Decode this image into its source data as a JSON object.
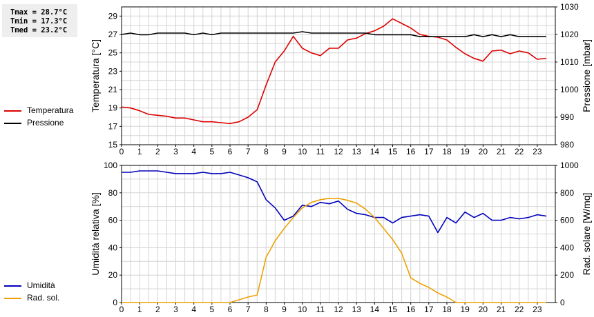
{
  "stats": {
    "tmax": "Tmax = 28.7°C",
    "tmin": "Tmin = 17.3°C",
    "tmed": "Tmed = 23.2°C"
  },
  "legend_top": [
    {
      "label": "Temperatura",
      "color": "#dd0000"
    },
    {
      "label": "Pressione",
      "color": "#000000"
    }
  ],
  "legend_bottom": [
    {
      "label": "Umidità",
      "color": "#0000bb"
    },
    {
      "label": "Rad. sol.",
      "color": "#eea000"
    }
  ],
  "chart_data": [
    {
      "type": "line",
      "xlabel": "",
      "ylabel": "Temperatura [°C]",
      "ylabel_right": "Pressione [mbar]",
      "xlim": [
        0,
        24
      ],
      "ylim": [
        15,
        30
      ],
      "ylim_right": [
        980,
        1030
      ],
      "x_ticks": [
        0,
        1,
        2,
        3,
        4,
        5,
        6,
        7,
        8,
        9,
        10,
        11,
        12,
        13,
        14,
        15,
        16,
        17,
        18,
        19,
        20,
        21,
        22,
        23
      ],
      "y_ticks": [
        15,
        17,
        19,
        21,
        23,
        25,
        27,
        29
      ],
      "y_ticks_right": [
        980,
        990,
        1000,
        1010,
        1020,
        1030
      ],
      "grid": true,
      "series": [
        {
          "name": "Temperatura",
          "axis": "left",
          "color": "#dd0000",
          "x": [
            0,
            0.5,
            1,
            1.5,
            2,
            2.5,
            3,
            3.5,
            4,
            4.5,
            5,
            5.5,
            6,
            6.5,
            7,
            7.5,
            8,
            8.5,
            9,
            9.5,
            10,
            10.5,
            11,
            11.5,
            12,
            12.5,
            13,
            13.5,
            14,
            14.5,
            15,
            15.5,
            16,
            16.5,
            17,
            17.5,
            18,
            18.5,
            19,
            19.5,
            20,
            20.5,
            21,
            21.5,
            22,
            22.5,
            23,
            23.5
          ],
          "y": [
            19.1,
            19.0,
            18.7,
            18.3,
            18.2,
            18.1,
            17.9,
            17.9,
            17.7,
            17.5,
            17.5,
            17.4,
            17.3,
            17.5,
            18.0,
            18.8,
            21.5,
            24.0,
            25.2,
            26.8,
            25.5,
            25.0,
            24.7,
            25.5,
            25.5,
            26.4,
            26.6,
            27.1,
            27.4,
            27.9,
            28.7,
            28.2,
            27.7,
            27.0,
            26.8,
            26.7,
            26.4,
            25.6,
            24.9,
            24.4,
            24.1,
            25.2,
            25.3,
            24.9,
            25.2,
            25.0,
            24.3,
            24.4
          ]
        },
        {
          "name": "Pressione",
          "axis": "right",
          "color": "#000000",
          "x": [
            0,
            0.5,
            1,
            1.5,
            2,
            2.5,
            3,
            3.5,
            4,
            4.5,
            5,
            5.5,
            6,
            6.5,
            7,
            7.5,
            8,
            8.5,
            9,
            9.5,
            10,
            10.5,
            11,
            11.5,
            12,
            12.5,
            13,
            13.5,
            14,
            14.5,
            15,
            15.5,
            16,
            16.5,
            17,
            17.5,
            18,
            18.5,
            19,
            19.5,
            20,
            20.5,
            21,
            21.5,
            22,
            22.5,
            23,
            23.5
          ],
          "y": [
            1020,
            1020.5,
            1019.9,
            1019.9,
            1020.5,
            1020.5,
            1020.5,
            1020.5,
            1019.9,
            1020.5,
            1019.9,
            1020.5,
            1020.5,
            1020.5,
            1020.5,
            1020.5,
            1020.5,
            1020.5,
            1020.5,
            1020.5,
            1021,
            1020.5,
            1020.5,
            1020.5,
            1020.5,
            1020.5,
            1020.5,
            1020.5,
            1019.9,
            1019.9,
            1019.9,
            1019.9,
            1019.9,
            1019.2,
            1019.2,
            1019.2,
            1019.2,
            1019.2,
            1019.2,
            1019.9,
            1019.2,
            1019.9,
            1019.2,
            1019.9,
            1019.2,
            1019.2,
            1019.2,
            1019.2
          ]
        }
      ]
    },
    {
      "type": "line",
      "xlabel": "",
      "ylabel": "Umidità relativa [%]",
      "ylabel_right": "Rad. solare [W/mq]",
      "xlim": [
        0,
        24
      ],
      "ylim": [
        0,
        100
      ],
      "ylim_right": [
        0,
        1000
      ],
      "x_ticks": [
        0,
        1,
        2,
        3,
        4,
        5,
        6,
        7,
        8,
        9,
        10,
        11,
        12,
        13,
        14,
        15,
        16,
        17,
        18,
        19,
        20,
        21,
        22,
        23
      ],
      "y_ticks": [
        0,
        20,
        40,
        60,
        80,
        100
      ],
      "y_ticks_right": [
        0,
        200,
        400,
        600,
        800,
        1000
      ],
      "grid": true,
      "series": [
        {
          "name": "Umidità",
          "axis": "left",
          "color": "#0000bb",
          "x": [
            0,
            0.5,
            1,
            1.5,
            2,
            2.5,
            3,
            3.5,
            4,
            4.5,
            5,
            5.5,
            6,
            6.5,
            7,
            7.5,
            8,
            8.5,
            9,
            9.5,
            10,
            10.5,
            11,
            11.5,
            12,
            12.5,
            13,
            13.5,
            14,
            14.5,
            15,
            15.5,
            16,
            16.5,
            17,
            17.5,
            18,
            18.5,
            19,
            19.5,
            20,
            20.5,
            21,
            21.5,
            22,
            22.5,
            23,
            23.5
          ],
          "y": [
            95,
            95,
            96,
            96,
            96,
            95,
            94,
            94,
            94,
            95,
            94,
            94,
            95,
            93,
            91,
            88,
            75,
            69,
            60,
            63,
            71,
            70,
            73,
            72,
            74,
            68,
            65,
            64,
            62,
            62,
            58,
            62,
            63,
            64,
            63,
            51,
            62,
            58,
            66,
            62,
            65,
            60,
            60,
            62,
            61,
            62,
            64,
            63
          ]
        },
        {
          "name": "Rad. sol.",
          "axis": "right",
          "color": "#eea000",
          "x": [
            0,
            0.5,
            1,
            1.5,
            2,
            2.5,
            3,
            3.5,
            4,
            4.5,
            5,
            5.5,
            6,
            6.5,
            7,
            7.5,
            8,
            8.5,
            9,
            9.5,
            10,
            10.5,
            11,
            11.5,
            12,
            12.5,
            13,
            13.5,
            14,
            14.5,
            15,
            15.5,
            16,
            16.5,
            17,
            17.5,
            18,
            18.5,
            19,
            19.5,
            20,
            20.5,
            21,
            21.5,
            22,
            22.5,
            23,
            23.5
          ],
          "y": [
            0,
            0,
            0,
            0,
            0,
            0,
            0,
            0,
            0,
            0,
            0,
            0,
            0,
            20,
            40,
            55,
            330,
            450,
            540,
            620,
            690,
            730,
            750,
            760,
            760,
            745,
            725,
            680,
            620,
            540,
            460,
            360,
            180,
            140,
            110,
            70,
            40,
            0,
            0,
            0,
            0,
            0,
            0,
            0,
            0,
            0,
            0,
            0
          ]
        }
      ]
    }
  ]
}
